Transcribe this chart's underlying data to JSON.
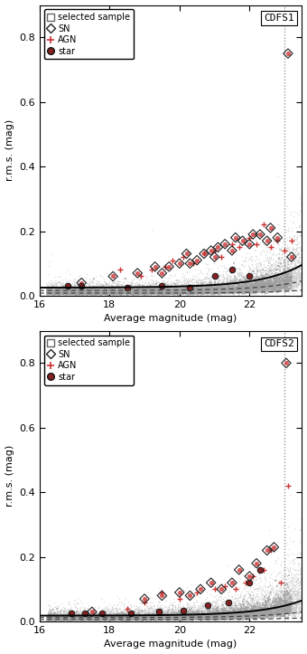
{
  "panels": [
    {
      "label": "CDFS1",
      "xlim": [
        16,
        23.5
      ],
      "ylim": [
        -0.01,
        0.9
      ],
      "ylim_plot": [
        0,
        0.9
      ],
      "yticks": [
        0.0,
        0.2,
        0.4,
        0.6,
        0.8
      ],
      "xticks": [
        16,
        18,
        20,
        22
      ],
      "vline_x": 23.0,
      "sn_mags": [
        17.2,
        18.1,
        18.8,
        19.3,
        19.5,
        19.7,
        20.0,
        20.2,
        20.3,
        20.5,
        20.7,
        20.9,
        21.0,
        21.1,
        21.3,
        21.5,
        21.6,
        21.8,
        22.0,
        22.1,
        22.3,
        22.5,
        22.6,
        22.8,
        23.1,
        23.2
      ],
      "sn_rmss": [
        0.04,
        0.06,
        0.07,
        0.09,
        0.07,
        0.09,
        0.1,
        0.13,
        0.1,
        0.11,
        0.13,
        0.14,
        0.12,
        0.15,
        0.16,
        0.14,
        0.18,
        0.17,
        0.16,
        0.19,
        0.19,
        0.17,
        0.21,
        0.18,
        0.75,
        0.12
      ],
      "agn_mags": [
        18.3,
        18.9,
        19.2,
        19.6,
        19.8,
        20.1,
        20.4,
        20.7,
        21.0,
        21.2,
        21.5,
        21.7,
        22.0,
        22.2,
        22.4,
        22.6,
        22.8,
        23.0,
        23.2
      ],
      "agn_rmss": [
        0.08,
        0.06,
        0.08,
        0.09,
        0.11,
        0.12,
        0.1,
        0.13,
        0.14,
        0.12,
        0.16,
        0.15,
        0.18,
        0.16,
        0.22,
        0.15,
        0.17,
        0.14,
        0.17
      ],
      "star_mags": [
        16.8,
        17.2,
        18.5,
        19.5,
        20.3,
        21.0,
        21.5,
        22.0
      ],
      "star_rmss": [
        0.03,
        0.03,
        0.025,
        0.03,
        0.025,
        0.06,
        0.08,
        0.06
      ],
      "curve_a": 0.00012,
      "curve_b": 0.85,
      "curve_c": 0.025,
      "dashed_a1": 5e-05,
      "dashed_b1": 0.85,
      "dashed_c1": 0.016,
      "dashed_a2": 1.5e-05,
      "dashed_b2": 0.85,
      "dashed_c2": 0.008,
      "seed_bg": 42
    },
    {
      "label": "CDFS2",
      "xlim": [
        16,
        23.5
      ],
      "ylim": [
        -0.01,
        0.9
      ],
      "ylim_plot": [
        0,
        0.9
      ],
      "yticks": [
        0.0,
        0.2,
        0.4,
        0.6,
        0.8
      ],
      "xticks": [
        16,
        18,
        20,
        22
      ],
      "vline_x": 23.0,
      "sn_mags": [
        17.5,
        19.0,
        19.5,
        20.0,
        20.3,
        20.6,
        20.9,
        21.2,
        21.5,
        21.7,
        22.0,
        22.2,
        22.5,
        22.7,
        23.05
      ],
      "sn_rmss": [
        0.03,
        0.07,
        0.08,
        0.09,
        0.08,
        0.1,
        0.12,
        0.1,
        0.12,
        0.16,
        0.14,
        0.18,
        0.22,
        0.23,
        0.8
      ],
      "agn_mags": [
        18.5,
        19.0,
        19.5,
        20.0,
        20.5,
        21.0,
        21.3,
        21.6,
        21.9,
        22.1,
        22.4,
        22.6,
        22.9,
        23.1
      ],
      "agn_rmss": [
        0.04,
        0.06,
        0.09,
        0.07,
        0.09,
        0.1,
        0.11,
        0.1,
        0.12,
        0.14,
        0.16,
        0.22,
        0.12,
        0.42
      ],
      "star_mags": [
        16.9,
        17.3,
        17.8,
        18.6,
        19.4,
        20.1,
        20.8,
        21.4,
        22.0,
        22.3
      ],
      "star_rmss": [
        0.025,
        0.025,
        0.025,
        0.025,
        0.03,
        0.035,
        0.05,
        0.06,
        0.12,
        0.16
      ],
      "curve_a": 8e-05,
      "curve_b": 0.85,
      "curve_c": 0.018,
      "dashed_a1": 3e-05,
      "dashed_b1": 0.85,
      "dashed_c1": 0.012,
      "dashed_a2": 8e-06,
      "dashed_b2": 0.85,
      "dashed_c2": 0.006,
      "seed_bg": 99
    }
  ],
  "xlabel": "Average magnitude (mag)",
  "ylabel": "r.m.s. (mag)"
}
